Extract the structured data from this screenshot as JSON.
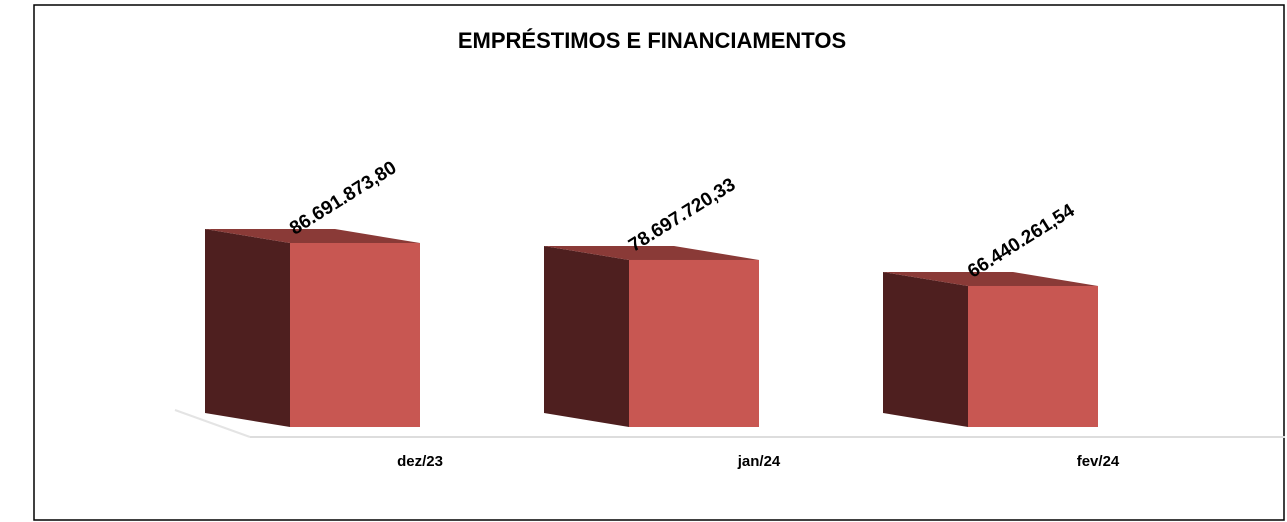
{
  "chart_data": {
    "type": "bar3d",
    "title": "EMPRÉSTIMOS E FINANCIAMENTOS",
    "categories": [
      "dez/23",
      "jan/24",
      "fev/24"
    ],
    "values": [
      86691873.8,
      78697720.33,
      66440261.54
    ],
    "value_labels": [
      "86.691.873,80",
      "78.697.720,33",
      "66.440.261,54"
    ],
    "color": "#c85752"
  }
}
